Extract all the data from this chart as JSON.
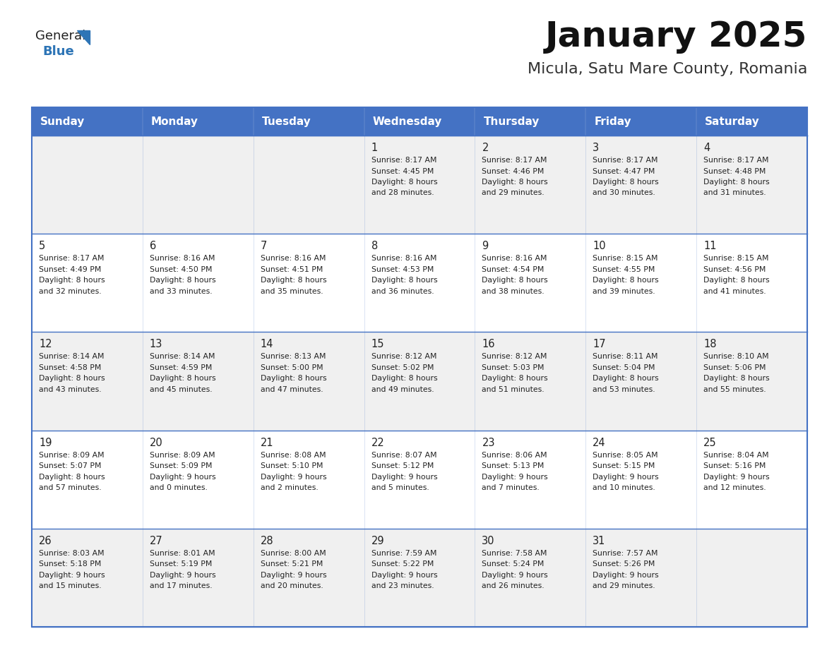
{
  "title": "January 2025",
  "subtitle": "Micula, Satu Mare County, Romania",
  "header_bg": "#4472C4",
  "header_text": "#FFFFFF",
  "row_bg_odd": "#F0F0F0",
  "row_bg_even": "#FFFFFF",
  "separator_color": "#4472C4",
  "day_names": [
    "Sunday",
    "Monday",
    "Tuesday",
    "Wednesday",
    "Thursday",
    "Friday",
    "Saturday"
  ],
  "cell_text_color": "#222222",
  "day_number_color": "#222222",
  "logo_general_color": "#222222",
  "logo_blue_color": "#2E75B6",
  "logo_triangle_color": "#2E75B6",
  "title_color": "#111111",
  "subtitle_color": "#333333",
  "weeks": [
    [
      {
        "day": "",
        "sunrise": "",
        "sunset": "",
        "daylight_h": "",
        "daylight_m": ""
      },
      {
        "day": "",
        "sunrise": "",
        "sunset": "",
        "daylight_h": "",
        "daylight_m": ""
      },
      {
        "day": "",
        "sunrise": "",
        "sunset": "",
        "daylight_h": "",
        "daylight_m": ""
      },
      {
        "day": "1",
        "sunrise": "8:17 AM",
        "sunset": "4:45 PM",
        "daylight_h": "8 hours",
        "daylight_m": "and 28 minutes."
      },
      {
        "day": "2",
        "sunrise": "8:17 AM",
        "sunset": "4:46 PM",
        "daylight_h": "8 hours",
        "daylight_m": "and 29 minutes."
      },
      {
        "day": "3",
        "sunrise": "8:17 AM",
        "sunset": "4:47 PM",
        "daylight_h": "8 hours",
        "daylight_m": "and 30 minutes."
      },
      {
        "day": "4",
        "sunrise": "8:17 AM",
        "sunset": "4:48 PM",
        "daylight_h": "8 hours",
        "daylight_m": "and 31 minutes."
      }
    ],
    [
      {
        "day": "5",
        "sunrise": "8:17 AM",
        "sunset": "4:49 PM",
        "daylight_h": "8 hours",
        "daylight_m": "and 32 minutes."
      },
      {
        "day": "6",
        "sunrise": "8:16 AM",
        "sunset": "4:50 PM",
        "daylight_h": "8 hours",
        "daylight_m": "and 33 minutes."
      },
      {
        "day": "7",
        "sunrise": "8:16 AM",
        "sunset": "4:51 PM",
        "daylight_h": "8 hours",
        "daylight_m": "and 35 minutes."
      },
      {
        "day": "8",
        "sunrise": "8:16 AM",
        "sunset": "4:53 PM",
        "daylight_h": "8 hours",
        "daylight_m": "and 36 minutes."
      },
      {
        "day": "9",
        "sunrise": "8:16 AM",
        "sunset": "4:54 PM",
        "daylight_h": "8 hours",
        "daylight_m": "and 38 minutes."
      },
      {
        "day": "10",
        "sunrise": "8:15 AM",
        "sunset": "4:55 PM",
        "daylight_h": "8 hours",
        "daylight_m": "and 39 minutes."
      },
      {
        "day": "11",
        "sunrise": "8:15 AM",
        "sunset": "4:56 PM",
        "daylight_h": "8 hours",
        "daylight_m": "and 41 minutes."
      }
    ],
    [
      {
        "day": "12",
        "sunrise": "8:14 AM",
        "sunset": "4:58 PM",
        "daylight_h": "8 hours",
        "daylight_m": "and 43 minutes."
      },
      {
        "day": "13",
        "sunrise": "8:14 AM",
        "sunset": "4:59 PM",
        "daylight_h": "8 hours",
        "daylight_m": "and 45 minutes."
      },
      {
        "day": "14",
        "sunrise": "8:13 AM",
        "sunset": "5:00 PM",
        "daylight_h": "8 hours",
        "daylight_m": "and 47 minutes."
      },
      {
        "day": "15",
        "sunrise": "8:12 AM",
        "sunset": "5:02 PM",
        "daylight_h": "8 hours",
        "daylight_m": "and 49 minutes."
      },
      {
        "day": "16",
        "sunrise": "8:12 AM",
        "sunset": "5:03 PM",
        "daylight_h": "8 hours",
        "daylight_m": "and 51 minutes."
      },
      {
        "day": "17",
        "sunrise": "8:11 AM",
        "sunset": "5:04 PM",
        "daylight_h": "8 hours",
        "daylight_m": "and 53 minutes."
      },
      {
        "day": "18",
        "sunrise": "8:10 AM",
        "sunset": "5:06 PM",
        "daylight_h": "8 hours",
        "daylight_m": "and 55 minutes."
      }
    ],
    [
      {
        "day": "19",
        "sunrise": "8:09 AM",
        "sunset": "5:07 PM",
        "daylight_h": "8 hours",
        "daylight_m": "and 57 minutes."
      },
      {
        "day": "20",
        "sunrise": "8:09 AM",
        "sunset": "5:09 PM",
        "daylight_h": "9 hours",
        "daylight_m": "and 0 minutes."
      },
      {
        "day": "21",
        "sunrise": "8:08 AM",
        "sunset": "5:10 PM",
        "daylight_h": "9 hours",
        "daylight_m": "and 2 minutes."
      },
      {
        "day": "22",
        "sunrise": "8:07 AM",
        "sunset": "5:12 PM",
        "daylight_h": "9 hours",
        "daylight_m": "and 5 minutes."
      },
      {
        "day": "23",
        "sunrise": "8:06 AM",
        "sunset": "5:13 PM",
        "daylight_h": "9 hours",
        "daylight_m": "and 7 minutes."
      },
      {
        "day": "24",
        "sunrise": "8:05 AM",
        "sunset": "5:15 PM",
        "daylight_h": "9 hours",
        "daylight_m": "and 10 minutes."
      },
      {
        "day": "25",
        "sunrise": "8:04 AM",
        "sunset": "5:16 PM",
        "daylight_h": "9 hours",
        "daylight_m": "and 12 minutes."
      }
    ],
    [
      {
        "day": "26",
        "sunrise": "8:03 AM",
        "sunset": "5:18 PM",
        "daylight_h": "9 hours",
        "daylight_m": "and 15 minutes."
      },
      {
        "day": "27",
        "sunrise": "8:01 AM",
        "sunset": "5:19 PM",
        "daylight_h": "9 hours",
        "daylight_m": "and 17 minutes."
      },
      {
        "day": "28",
        "sunrise": "8:00 AM",
        "sunset": "5:21 PM",
        "daylight_h": "9 hours",
        "daylight_m": "and 20 minutes."
      },
      {
        "day": "29",
        "sunrise": "7:59 AM",
        "sunset": "5:22 PM",
        "daylight_h": "9 hours",
        "daylight_m": "and 23 minutes."
      },
      {
        "day": "30",
        "sunrise": "7:58 AM",
        "sunset": "5:24 PM",
        "daylight_h": "9 hours",
        "daylight_m": "and 26 minutes."
      },
      {
        "day": "31",
        "sunrise": "7:57 AM",
        "sunset": "5:26 PM",
        "daylight_h": "9 hours",
        "daylight_m": "and 29 minutes."
      },
      {
        "day": "",
        "sunrise": "",
        "sunset": "",
        "daylight_h": "",
        "daylight_m": ""
      }
    ]
  ]
}
